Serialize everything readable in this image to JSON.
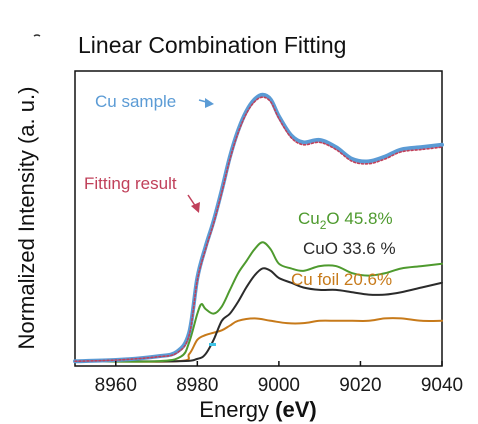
{
  "chart_data": {
    "type": "line",
    "title": "Linear Combination Fitting",
    "xlabel_plain": "Energy",
    "xlabel_unit": "(eV)",
    "ylabel": "Normalized Intensity (a. u.)",
    "xlim": [
      8950,
      9040
    ],
    "ylim": [
      -0.02,
      1.22
    ],
    "xticks": [
      8960,
      8980,
      9000,
      9020,
      9040
    ],
    "grid": false,
    "annotations": {
      "cu_sample": "Cu sample",
      "fitting_result": "Fitting result",
      "cu2o_prefix": "Cu",
      "cu2o_sub": "2",
      "cu2o_suffix": "O 45.8%",
      "cuo": "CuO 33.6 %",
      "cu_foil": "Cu foil 20.6%"
    },
    "colors": {
      "cu_sample": "#5b9bd5",
      "fitting_result": "#c0405a",
      "cu2o": "#4e9a2e",
      "cuo": "#2b2b2b",
      "cu_foil": "#c77a1a",
      "axis": "#111111"
    },
    "series": [
      {
        "name": "Cu sample",
        "x": [
          8950,
          8960,
          8970,
          8975,
          8978,
          8980,
          8982,
          8984,
          8986,
          8988,
          8990,
          8992,
          8994,
          8996,
          8998,
          9000,
          9003,
          9006,
          9010,
          9014,
          9018,
          9022,
          9026,
          9030,
          9035,
          9040
        ],
        "y": [
          0.0,
          0.005,
          0.02,
          0.04,
          0.12,
          0.35,
          0.48,
          0.59,
          0.72,
          0.86,
          0.97,
          1.05,
          1.1,
          1.12,
          1.1,
          1.03,
          0.95,
          0.92,
          0.93,
          0.9,
          0.85,
          0.84,
          0.86,
          0.89,
          0.9,
          0.91
        ]
      },
      {
        "name": "Fitting result",
        "x": [
          8950,
          8960,
          8970,
          8975,
          8978,
          8980,
          8982,
          8984,
          8986,
          8988,
          8990,
          8992,
          8994,
          8996,
          8998,
          9000,
          9003,
          9006,
          9010,
          9014,
          9018,
          9022,
          9026,
          9030,
          9035,
          9040
        ],
        "y": [
          0.0,
          0.005,
          0.018,
          0.035,
          0.11,
          0.34,
          0.47,
          0.58,
          0.71,
          0.85,
          0.96,
          1.04,
          1.09,
          1.11,
          1.09,
          1.02,
          0.94,
          0.91,
          0.92,
          0.89,
          0.84,
          0.83,
          0.85,
          0.88,
          0.89,
          0.9
        ]
      },
      {
        "name": "Cu2O",
        "x": [
          8950,
          8970,
          8976,
          8978,
          8980,
          8981,
          8982,
          8984,
          8986,
          8988,
          8990,
          8992,
          8994,
          8996,
          8998,
          9000,
          9003,
          9006,
          9010,
          9014,
          9018,
          9022,
          9026,
          9030,
          9035,
          9040
        ],
        "y": [
          0.0,
          0.0,
          0.02,
          0.08,
          0.2,
          0.24,
          0.22,
          0.2,
          0.23,
          0.3,
          0.37,
          0.42,
          0.47,
          0.5,
          0.47,
          0.41,
          0.39,
          0.38,
          0.4,
          0.4,
          0.37,
          0.36,
          0.37,
          0.39,
          0.4,
          0.41
        ]
      },
      {
        "name": "CuO",
        "x": [
          8950,
          8975,
          8980,
          8982,
          8984,
          8986,
          8988,
          8990,
          8992,
          8994,
          8996,
          8998,
          9000,
          9003,
          9006,
          9010,
          9014,
          9018,
          9022,
          9026,
          9030,
          9035,
          9040
        ],
        "y": [
          0.0,
          0.0,
          0.01,
          0.03,
          0.09,
          0.17,
          0.2,
          0.25,
          0.31,
          0.36,
          0.39,
          0.38,
          0.35,
          0.33,
          0.31,
          0.3,
          0.3,
          0.29,
          0.28,
          0.28,
          0.29,
          0.31,
          0.33
        ]
      },
      {
        "name": "Cu foil",
        "x": [
          8950,
          8975,
          8978,
          8980,
          8982,
          8984,
          8986,
          8988,
          8990,
          8994,
          8998,
          9002,
          9006,
          9010,
          9014,
          9018,
          9022,
          9026,
          9030,
          9035,
          9040
        ],
        "y": [
          0.0,
          0.0,
          0.03,
          0.09,
          0.11,
          0.12,
          0.13,
          0.15,
          0.17,
          0.18,
          0.17,
          0.16,
          0.16,
          0.17,
          0.17,
          0.17,
          0.17,
          0.18,
          0.18,
          0.17,
          0.17
        ]
      }
    ]
  }
}
